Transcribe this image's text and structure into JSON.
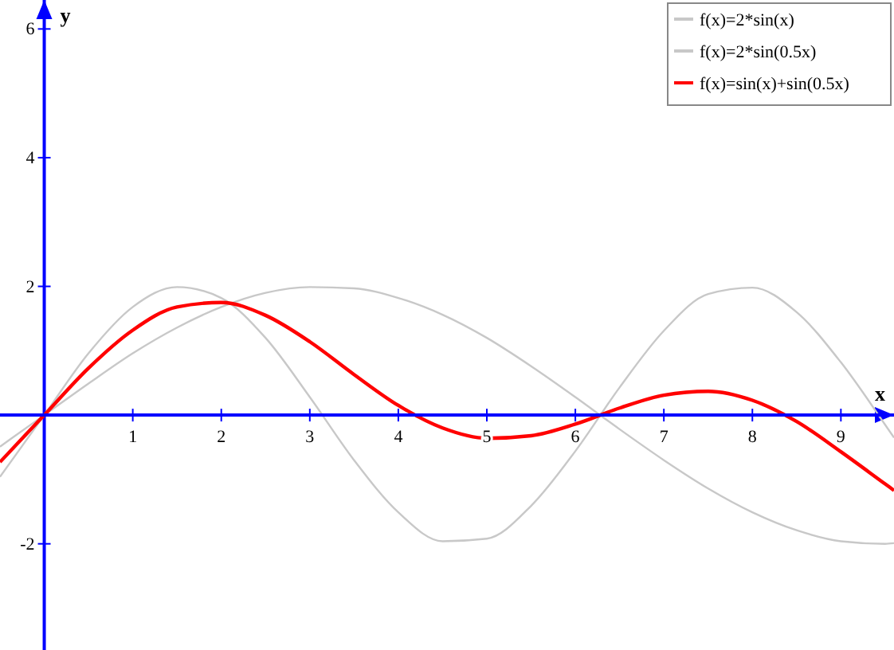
{
  "chart_data": {
    "type": "line",
    "xlabel": "x",
    "ylabel": "y",
    "x": [
      -0.5,
      0,
      0.5,
      1,
      1.5,
      2,
      2.5,
      3,
      3.5,
      4,
      4.5,
      5,
      5.5,
      6,
      6.5,
      7,
      7.5,
      8,
      8.5,
      9,
      9.5,
      9.6
    ],
    "series": [
      {
        "name": "f(x)=2*sin(x)",
        "color": "#c8c8c8",
        "values": [
          -0.96,
          0,
          0.96,
          1.68,
          1.99,
          1.82,
          1.2,
          0.28,
          -0.7,
          -1.51,
          -1.96,
          -1.92,
          -1.41,
          -0.56,
          0.43,
          1.31,
          1.88,
          1.98,
          1.6,
          0.82,
          -0.15,
          -0.35
        ]
      },
      {
        "name": "f(x)=2*sin(0.5x)",
        "color": "#c8c8c8",
        "values": [
          -0.49,
          0,
          0.49,
          0.96,
          1.36,
          1.68,
          1.9,
          1.99,
          1.97,
          1.82,
          1.56,
          1.2,
          0.76,
          0.28,
          -0.22,
          -0.7,
          -1.14,
          -1.51,
          -1.79,
          -1.96,
          -2,
          -1.99
        ]
      },
      {
        "name": "f(x)=sin(x)+sin(0.5x)",
        "color": "#ff0000",
        "values": [
          -0.73,
          0,
          0.73,
          1.32,
          1.68,
          1.75,
          1.55,
          1.14,
          0.63,
          0.15,
          -0.2,
          -0.36,
          -0.32,
          -0.14,
          0.11,
          0.31,
          0.37,
          0.23,
          -0.1,
          -0.57,
          -1.07,
          -1.17
        ]
      }
    ],
    "xlim": [
      -0.5,
      9.6
    ],
    "ylim": [
      -3.65,
      6.45
    ],
    "xticks": [
      1,
      2,
      3,
      4,
      5,
      6,
      7,
      8,
      9
    ],
    "yticks": [
      -2,
      2,
      4,
      6
    ],
    "grid": false,
    "legend": "top right",
    "marker": "none",
    "line_style": "solid"
  }
}
